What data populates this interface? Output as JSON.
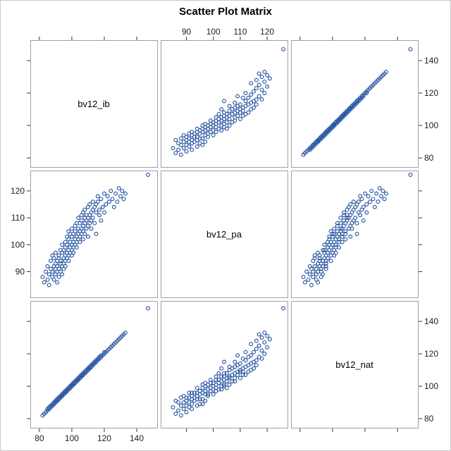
{
  "chart_data": {
    "type": "scatter",
    "subtype": "scatter-matrix",
    "title": "Scatter Plot Matrix",
    "variables": [
      "bv12_ib",
      "bv12_pa",
      "bv12_nat"
    ],
    "axes": {
      "bv12_ib": {
        "range": [
          77,
          150
        ],
        "ticks": [
          80,
          100,
          120,
          140
        ]
      },
      "bv12_pa": {
        "range": [
          82,
          126
        ],
        "ticks": [
          90,
          100,
          110,
          120
        ]
      },
      "bv12_nat": {
        "range": [
          77,
          150
        ],
        "ticks": [
          80,
          100,
          120,
          140
        ]
      }
    },
    "tick_label_placement": {
      "top": "bv12_pa",
      "bottom": "bv12_ib",
      "left": "bv12_pa",
      "right": "bv12_ib"
    },
    "grid": false,
    "marker": {
      "shape": "circle",
      "fill": "none",
      "stroke": "#1f4e9e"
    },
    "points": [
      [
        82,
        88,
        82
      ],
      [
        83,
        86,
        83
      ],
      [
        84,
        90,
        84
      ],
      [
        85,
        87,
        85
      ],
      [
        85,
        92,
        86
      ],
      [
        86,
        89,
        86
      ],
      [
        86,
        85,
        87
      ],
      [
        87,
        91,
        87
      ],
      [
        87,
        94,
        88
      ],
      [
        88,
        88,
        88
      ],
      [
        88,
        96,
        89
      ],
      [
        88,
        90,
        88
      ],
      [
        89,
        92,
        89
      ],
      [
        89,
        87,
        90
      ],
      [
        89,
        95,
        89
      ],
      [
        90,
        91,
        90
      ],
      [
        90,
        93,
        91
      ],
      [
        90,
        89,
        90
      ],
      [
        90,
        97,
        91
      ],
      [
        91,
        86,
        91
      ],
      [
        91,
        94,
        92
      ],
      [
        91,
        90,
        91
      ],
      [
        91,
        92,
        92
      ],
      [
        92,
        96,
        92
      ],
      [
        92,
        88,
        93
      ],
      [
        92,
        95,
        92
      ],
      [
        92,
        91,
        93
      ],
      [
        93,
        93,
        93
      ],
      [
        93,
        98,
        94
      ],
      [
        93,
        90,
        93
      ],
      [
        93,
        94,
        94
      ],
      [
        94,
        92,
        94
      ],
      [
        94,
        97,
        95
      ],
      [
        94,
        89,
        94
      ],
      [
        94,
        100,
        95
      ],
      [
        95,
        95,
        95
      ],
      [
        95,
        91,
        96
      ],
      [
        95,
        98,
        95
      ],
      [
        95,
        93,
        96
      ],
      [
        96,
        96,
        96
      ],
      [
        96,
        101,
        97
      ],
      [
        96,
        94,
        96
      ],
      [
        96,
        99,
        97
      ],
      [
        96,
        92,
        96
      ],
      [
        97,
        97,
        97
      ],
      [
        97,
        103,
        98
      ],
      [
        97,
        95,
        97
      ],
      [
        97,
        100,
        98
      ],
      [
        98,
        98,
        98
      ],
      [
        98,
        94,
        99
      ],
      [
        98,
        102,
        98
      ],
      [
        98,
        96,
        99
      ],
      [
        98,
        105,
        99
      ],
      [
        99,
        99,
        99
      ],
      [
        99,
        97,
        100
      ],
      [
        99,
        101,
        99
      ],
      [
        99,
        104,
        100
      ],
      [
        100,
        100,
        100
      ],
      [
        100,
        96,
        101
      ],
      [
        100,
        103,
        100
      ],
      [
        100,
        98,
        101
      ],
      [
        100,
        106,
        101
      ],
      [
        101,
        101,
        101
      ],
      [
        101,
        99,
        102
      ],
      [
        101,
        104,
        101
      ],
      [
        101,
        97,
        102
      ],
      [
        102,
        102,
        102
      ],
      [
        102,
        107,
        103
      ],
      [
        102,
        100,
        102
      ],
      [
        102,
        105,
        103
      ],
      [
        103,
        103,
        103
      ],
      [
        103,
        99,
        104
      ],
      [
        103,
        108,
        103
      ],
      [
        103,
        101,
        104
      ],
      [
        104,
        104,
        104
      ],
      [
        104,
        106,
        105
      ],
      [
        104,
        102,
        104
      ],
      [
        104,
        110,
        105
      ],
      [
        105,
        105,
        105
      ],
      [
        105,
        101,
        106
      ],
      [
        105,
        108,
        105
      ],
      [
        105,
        103,
        106
      ],
      [
        106,
        106,
        106
      ],
      [
        106,
        111,
        107
      ],
      [
        106,
        104,
        106
      ],
      [
        106,
        109,
        107
      ],
      [
        107,
        107,
        107
      ],
      [
        107,
        102,
        108
      ],
      [
        107,
        112,
        107
      ],
      [
        107,
        105,
        108
      ],
      [
        108,
        108,
        108
      ],
      [
        108,
        110,
        109
      ],
      [
        108,
        104,
        108
      ],
      [
        108,
        113,
        109
      ],
      [
        109,
        109,
        109
      ],
      [
        109,
        106,
        110
      ],
      [
        109,
        111,
        109
      ],
      [
        110,
        110,
        110
      ],
      [
        110,
        107,
        111
      ],
      [
        110,
        114,
        110
      ],
      [
        110,
        103,
        111
      ],
      [
        111,
        111,
        111
      ],
      [
        111,
        108,
        112
      ],
      [
        111,
        115,
        111
      ],
      [
        112,
        112,
        112
      ],
      [
        112,
        109,
        113
      ],
      [
        112,
        106,
        112
      ],
      [
        113,
        113,
        113
      ],
      [
        113,
        110,
        114
      ],
      [
        113,
        116,
        113
      ],
      [
        114,
        114,
        114
      ],
      [
        114,
        108,
        115
      ],
      [
        115,
        115,
        115
      ],
      [
        115,
        112,
        116
      ],
      [
        115,
        104,
        115
      ],
      [
        116,
        116,
        116
      ],
      [
        116,
        118,
        117
      ],
      [
        117,
        111,
        117
      ],
      [
        117,
        113,
        118
      ],
      [
        118,
        117,
        118
      ],
      [
        118,
        109,
        119
      ],
      [
        119,
        114,
        119
      ],
      [
        120,
        119,
        120
      ],
      [
        120,
        112,
        121
      ],
      [
        121,
        115,
        121
      ],
      [
        122,
        118,
        122
      ],
      [
        123,
        116,
        123
      ],
      [
        124,
        120,
        124
      ],
      [
        125,
        117,
        125
      ],
      [
        126,
        114,
        126
      ],
      [
        127,
        119,
        127
      ],
      [
        128,
        116,
        128
      ],
      [
        129,
        121,
        129
      ],
      [
        130,
        118,
        130
      ],
      [
        131,
        120,
        131
      ],
      [
        132,
        117,
        132
      ],
      [
        133,
        119,
        133
      ],
      [
        147,
        126,
        148
      ]
    ]
  },
  "colors": {
    "marker": "#1f4e9e",
    "frame": "#a0a0a0",
    "outer_frame": "#c8c8c8",
    "tick": "#333333"
  }
}
